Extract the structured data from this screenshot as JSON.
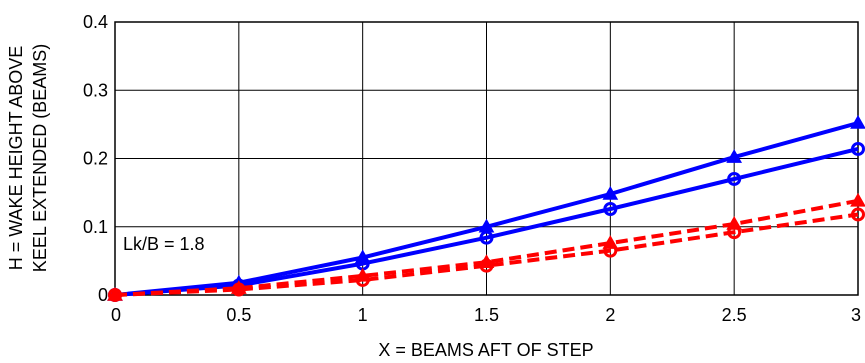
{
  "chart_data": {
    "type": "line",
    "xlabel": "X = BEAMS AFT OF STEP",
    "ylabel_lines": [
      "H = WAKE HEIGHT ABOVE",
      "KEEL EXTENDED (BEAMS)"
    ],
    "xlim": [
      0,
      3
    ],
    "ylim": [
      0,
      0.4
    ],
    "x_ticks": [
      0,
      0.5,
      1,
      1.5,
      2,
      2.5,
      3
    ],
    "x_tick_labels": [
      "0",
      "0.5",
      "1",
      "1.5",
      "2",
      "2.5",
      "3"
    ],
    "y_ticks": [
      0,
      0.1,
      0.2,
      0.3,
      0.4
    ],
    "y_tick_labels": [
      "0",
      "0.1",
      "0.2",
      "0.3",
      "0.4"
    ],
    "grid": true,
    "annotation": "Lk/B = 1.8",
    "x": [
      0,
      0.5,
      1,
      1.5,
      2,
      2.5,
      3
    ],
    "series": [
      {
        "values": [
          0,
          0.018,
          0.055,
          0.1,
          0.148,
          0.202,
          0.252
        ],
        "color": "#0000ff",
        "marker": "triangle",
        "dash": "solid"
      },
      {
        "values": [
          0,
          0.014,
          0.046,
          0.084,
          0.126,
          0.17,
          0.214
        ],
        "color": "#0000ff",
        "marker": "circle",
        "dash": "solid"
      },
      {
        "values": [
          0,
          0.01,
          0.028,
          0.048,
          0.076,
          0.104,
          0.138
        ],
        "color": "#ff0000",
        "marker": "triangle",
        "dash": "dashed"
      },
      {
        "values": [
          0,
          0.008,
          0.022,
          0.043,
          0.065,
          0.092,
          0.118
        ],
        "color": "#ff0000",
        "marker": "circle",
        "dash": "dashed"
      }
    ]
  }
}
